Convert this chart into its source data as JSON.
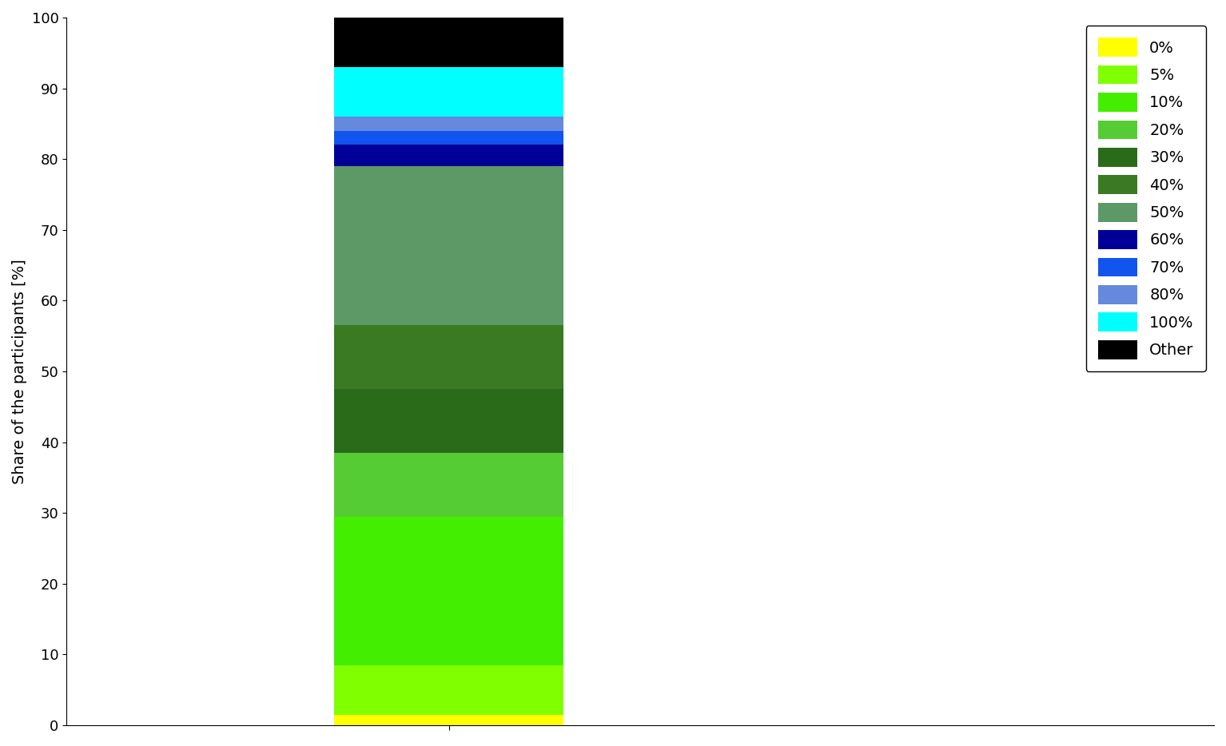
{
  "segments": [
    {
      "label": "0%",
      "value": 1.5,
      "color": "#FFFF00"
    },
    {
      "label": "5%",
      "value": 7.0,
      "color": "#7FFF00"
    },
    {
      "label": "10%",
      "value": 21.0,
      "color": "#44EE00"
    },
    {
      "label": "20%",
      "value": 9.0,
      "color": "#55CC33"
    },
    {
      "label": "30%",
      "value": 9.0,
      "color": "#2A6B1A"
    },
    {
      "label": "40%",
      "value": 9.0,
      "color": "#3A7A22"
    },
    {
      "label": "50%",
      "value": 22.5,
      "color": "#5D9966"
    },
    {
      "label": "60%",
      "value": 3.0,
      "color": "#000099"
    },
    {
      "label": "70%",
      "value": 2.0,
      "color": "#1155EE"
    },
    {
      "label": "80%",
      "value": 2.0,
      "color": "#6688DD"
    },
    {
      "label": "100%",
      "value": 7.0,
      "color": "#00FFFF"
    },
    {
      "label": "Other",
      "value": 7.0,
      "color": "#000000"
    }
  ],
  "ylabel": "Share of the participants [%]",
  "ylim": [
    0,
    100
  ],
  "yticks": [
    0,
    10,
    20,
    30,
    40,
    50,
    60,
    70,
    80,
    90,
    100
  ],
  "bar_x": 1,
  "bar_width": 0.6,
  "xlim": [
    0,
    3
  ],
  "figsize": [
    15.34,
    9.34
  ],
  "dpi": 100,
  "legend_fontsize": 14,
  "ylabel_fontsize": 14,
  "tick_labelsize": 13,
  "background_color": "#ffffff"
}
